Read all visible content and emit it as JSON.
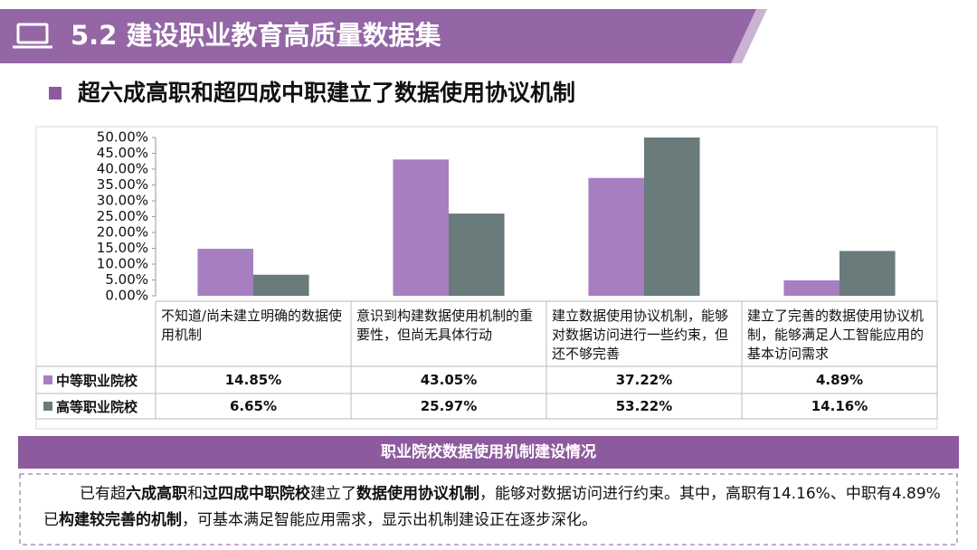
{
  "header": {
    "title": "5.2 建设职业教育高质量数据集"
  },
  "subtitle": "超六成高职和超四成中职建立了数据使用协议机制",
  "chart_data": {
    "type": "bar",
    "categories": [
      "不知道/尚未建立明确的数据使用机制",
      "意识到构建数据使用机制的重要性，但尚无具体行动",
      "建立数据使用协议机制，能够对数据访问进行一些约束，但还不够完善",
      "建立了完善的数据使用协议机制，能够满足人工智能应用的基本访问需求"
    ],
    "series": [
      {
        "name": "中等职业院校",
        "color": "#a77fc1",
        "values": [
          14.85,
          43.05,
          37.22,
          4.89
        ],
        "value_labels": [
          "14.85%",
          "43.05%",
          "37.22%",
          "4.89%"
        ]
      },
      {
        "name": "高等职业院校",
        "color": "#6a7b7c",
        "values": [
          6.65,
          25.97,
          53.22,
          14.16
        ],
        "value_labels": [
          "6.65%",
          "25.97%",
          "53.22%",
          "14.16%"
        ]
      }
    ],
    "ylim": [
      0,
      50
    ],
    "yticks": [
      {
        "value": 0,
        "label": "0.00%"
      },
      {
        "value": 5,
        "label": "5.00%"
      },
      {
        "value": 10,
        "label": "10.00%"
      },
      {
        "value": 15,
        "label": "15.00%"
      },
      {
        "value": 20,
        "label": "20.00%"
      },
      {
        "value": 25,
        "label": "25.00%"
      },
      {
        "value": 30,
        "label": "30.00%"
      },
      {
        "value": 35,
        "label": "35.00%"
      },
      {
        "value": 40,
        "label": "40.00%"
      },
      {
        "value": 45,
        "label": "45.00%"
      },
      {
        "value": 50,
        "label": "50.00%"
      }
    ],
    "grid": false
  },
  "caption": "职业院校数据使用机制建设情况",
  "paragraph": [
    "已有超",
    "六成高职",
    "和",
    "过四成中职院校",
    "建立了",
    "数据使用协议机制",
    "，能够对数据访问进行约束。其中，高职有14.16%、中职有4.89%已",
    "构建较完善的机制",
    "，可基本满足智能应用需求，显示出机制建设正在逐步深化。"
  ]
}
